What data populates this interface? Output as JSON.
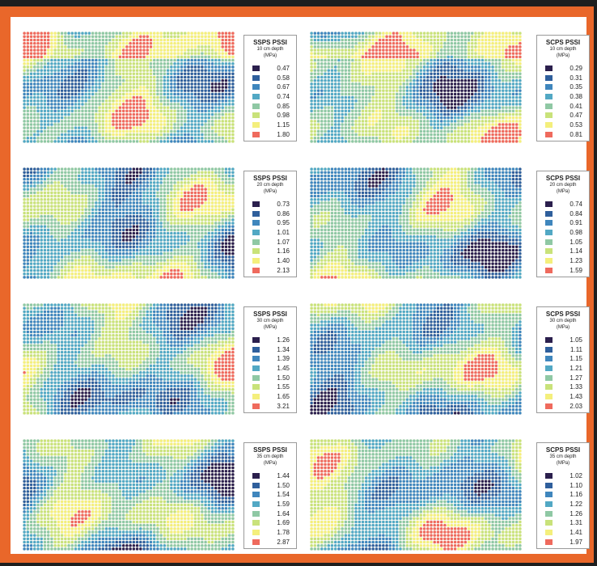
{
  "colors": {
    "frame": "#e9672a",
    "background": "#ffffff",
    "classes": [
      "#2b1f4d",
      "#2f5f9c",
      "#3f86bd",
      "#52a8c4",
      "#8fc8a4",
      "#c9e27a",
      "#f4ef7c",
      "#ef6a5d"
    ]
  },
  "chart_data": [
    {
      "type": "heatmap",
      "title": "SSPS PSSI",
      "subtitle": "10 cm depth",
      "unit": "(MPa)",
      "legend_values": [
        "0.47",
        "0.58",
        "0.67",
        "0.74",
        "0.85",
        "0.98",
        "1.15",
        "1.80"
      ]
    },
    {
      "type": "heatmap",
      "title": "SCPS PSSI",
      "subtitle": "10 cm depth",
      "unit": "(MPa)",
      "legend_values": [
        "0.29",
        "0.31",
        "0.35",
        "0.38",
        "0.41",
        "0.47",
        "0.53",
        "0.81"
      ]
    },
    {
      "type": "heatmap",
      "title": "SSPS PSSI",
      "subtitle": "20 cm depth",
      "unit": "(MPa)",
      "legend_values": [
        "0.73",
        "0.86",
        "0.95",
        "1.01",
        "1.07",
        "1.16",
        "1.40",
        "2.13"
      ]
    },
    {
      "type": "heatmap",
      "title": "SCPS PSSI",
      "subtitle": "20 cm depth",
      "unit": "(MPa)",
      "legend_values": [
        "0.74",
        "0.84",
        "0.91",
        "0.98",
        "1.05",
        "1.14",
        "1.23",
        "1.59"
      ]
    },
    {
      "type": "heatmap",
      "title": "SSPS PSSI",
      "subtitle": "30 cm depth",
      "unit": "(MPa)",
      "legend_values": [
        "1.26",
        "1.34",
        "1.39",
        "1.45",
        "1.50",
        "1.55",
        "1.65",
        "3.21"
      ]
    },
    {
      "type": "heatmap",
      "title": "SCPS PSSI",
      "subtitle": "30 cm depth",
      "unit": "(MPa)",
      "legend_values": [
        "1.05",
        "1.11",
        "1.15",
        "1.21",
        "1.27",
        "1.33",
        "1.43",
        "2.03"
      ]
    },
    {
      "type": "heatmap",
      "title": "SSPS PSSI",
      "subtitle": "35 cm depth",
      "unit": "(MPa)",
      "legend_values": [
        "1.44",
        "1.50",
        "1.54",
        "1.59",
        "1.64",
        "1.69",
        "1.78",
        "2.87"
      ]
    },
    {
      "type": "heatmap",
      "title": "SCPS PSSI",
      "subtitle": "35 cm depth",
      "unit": "(MPa)",
      "legend_values": [
        "1.02",
        "1.10",
        "1.16",
        "1.22",
        "1.26",
        "1.31",
        "1.41",
        "1.97"
      ]
    }
  ]
}
